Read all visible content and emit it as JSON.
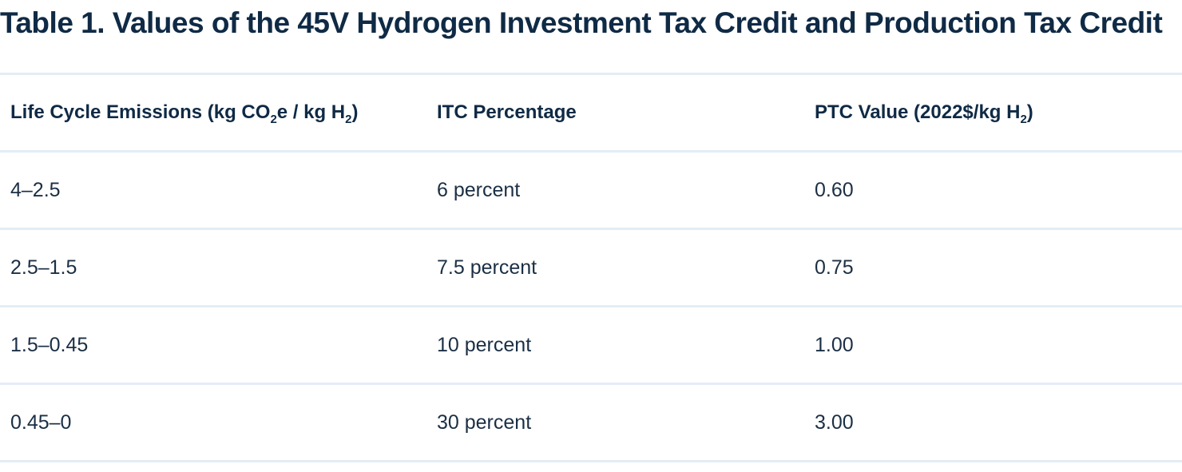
{
  "title": "Table 1.  Values of the 45V Hydrogen Investment Tax Credit and Production Tax Credit",
  "header": {
    "emissions": {
      "a": "Life Cycle Emissions (kg CO",
      "s1": "2",
      "b": "e / kg H",
      "s2": "2",
      "c": ")"
    },
    "itc": "ITC Percentage",
    "ptc": {
      "a": "PTC Value (2022$/kg H",
      "s1": "2",
      "b": ")"
    }
  },
  "rows": [
    {
      "emissions": "4–2.5",
      "itc": "6 percent",
      "ptc": "0.60"
    },
    {
      "emissions": "2.5–1.5",
      "itc": "7.5 percent",
      "ptc": "0.75"
    },
    {
      "emissions": "1.5–0.45",
      "itc": "10 percent",
      "ptc": "1.00"
    },
    {
      "emissions": "0.45–0",
      "itc": "30 percent",
      "ptc": "3.00"
    }
  ],
  "colors": {
    "text": "#0f2a45",
    "rule": "#e3edf5"
  }
}
